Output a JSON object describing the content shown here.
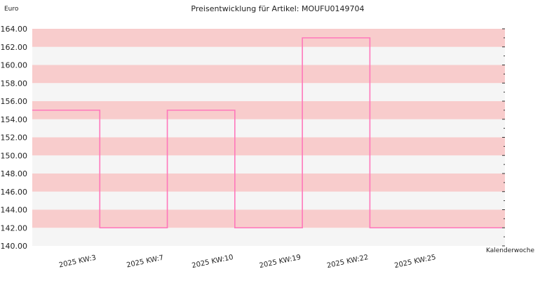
{
  "chart_data": {
    "type": "line",
    "title": "Preisentwicklung für Artikel: MOUFU0149704",
    "ylabel": "Euro",
    "xlabel": "Kalenderwoche",
    "line_style": "step",
    "categories": [
      "2025 KW:3",
      "2025 KW:7",
      "2025 KW:10",
      "2025 KW:19",
      "2025 KW:22",
      "2025 KW:25"
    ],
    "series": [
      {
        "values": [
          155.0,
          142.0,
          155.0,
          142.0,
          163.0,
          142.0
        ],
        "color": "#ff77bb"
      }
    ],
    "ylim": [
      140,
      164
    ],
    "yticks": [
      "140.00",
      "142.00",
      "144.00",
      "146.00",
      "148.00",
      "150.00",
      "152.00",
      "154.00",
      "156.00",
      "158.00",
      "160.00",
      "162.00",
      "164.00"
    ],
    "grid": "horizontal-bands",
    "band_colors": [
      "#f5f5f5",
      "#f8cccc"
    ]
  }
}
